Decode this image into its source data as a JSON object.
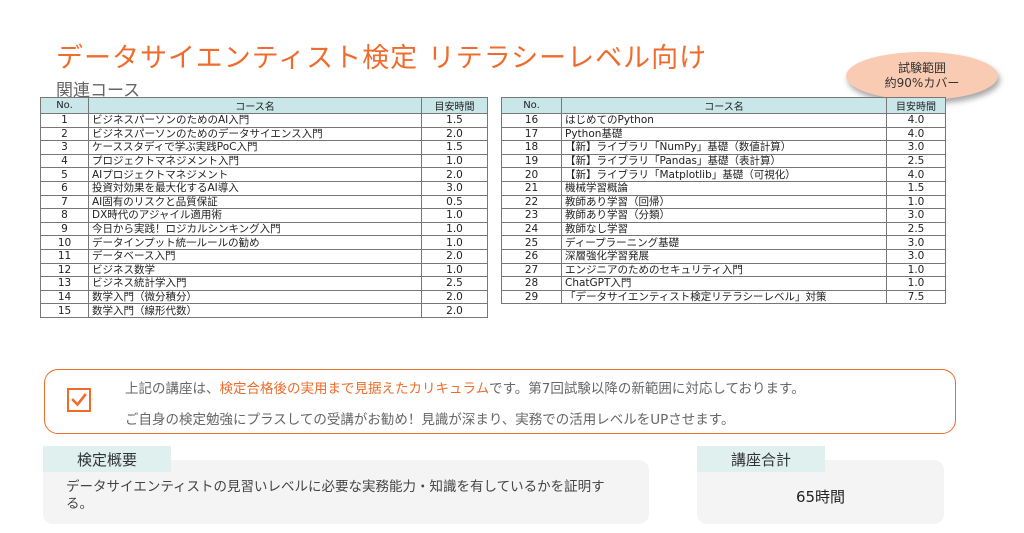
{
  "title": "データサイエンティスト検定 リテラシーレベル向け",
  "subtitle": "関連コース",
  "badge": {
    "line1": "試験範囲",
    "line2": "約90%カバー"
  },
  "table": {
    "headers": {
      "no": "No.",
      "name": "コース名",
      "hours": "目安時間"
    },
    "left": [
      {
        "no": "1",
        "name": "ビジネスパーソンのためのAI入門",
        "hours": "1.5"
      },
      {
        "no": "2",
        "name": "ビジネスパーソンのためのデータサイエンス入門",
        "hours": "2.0"
      },
      {
        "no": "3",
        "name": "ケーススタディで学ぶ実践PoC入門",
        "hours": "1.5"
      },
      {
        "no": "4",
        "name": "プロジェクトマネジメント入門",
        "hours": "1.0"
      },
      {
        "no": "5",
        "name": "AIプロジェクトマネジメント",
        "hours": "2.0"
      },
      {
        "no": "6",
        "name": "投資対効果を最大化するAI導入",
        "hours": "3.0"
      },
      {
        "no": "7",
        "name": "AI固有のリスクと品質保証",
        "hours": "0.5"
      },
      {
        "no": "8",
        "name": "DX時代のアジャイル適用術",
        "hours": "1.0"
      },
      {
        "no": "9",
        "name": "今日から実践！ロジカルシンキング入門",
        "hours": "1.0"
      },
      {
        "no": "10",
        "name": "データインプット統一ルールの勧め",
        "hours": "1.0"
      },
      {
        "no": "11",
        "name": "データベース入門",
        "hours": "2.0"
      },
      {
        "no": "12",
        "name": "ビジネス数学",
        "hours": "1.0"
      },
      {
        "no": "13",
        "name": "ビジネス統計学入門",
        "hours": "2.5"
      },
      {
        "no": "14",
        "name": "数学入門（微分積分）",
        "hours": "2.0"
      },
      {
        "no": "15",
        "name": "数学入門（線形代数）",
        "hours": "2.0"
      }
    ],
    "right": [
      {
        "no": "16",
        "name": "はじめてのPython",
        "hours": "4.0"
      },
      {
        "no": "17",
        "name": "Python基礎",
        "hours": "4.0"
      },
      {
        "no": "18",
        "name": "【新】ライブラリ「NumPy」基礎（数値計算）",
        "hours": "3.0"
      },
      {
        "no": "19",
        "name": "【新】ライブラリ「Pandas」基礎（表計算）",
        "hours": "2.5"
      },
      {
        "no": "20",
        "name": "【新】ライブラリ「Matplotlib」基礎（可視化）",
        "hours": "4.0"
      },
      {
        "no": "21",
        "name": "機械学習概論",
        "hours": "1.5"
      },
      {
        "no": "22",
        "name": "教師あり学習（回帰）",
        "hours": "1.0"
      },
      {
        "no": "23",
        "name": "教師あり学習（分類）",
        "hours": "3.0"
      },
      {
        "no": "24",
        "name": "教師なし学習",
        "hours": "2.5"
      },
      {
        "no": "25",
        "name": "ディープラーニング基礎",
        "hours": "3.0"
      },
      {
        "no": "26",
        "name": "深層強化学習発展",
        "hours": "3.0"
      },
      {
        "no": "27",
        "name": "エンジニアのためのセキュリティ入門",
        "hours": "1.0"
      },
      {
        "no": "28",
        "name": "ChatGPT入門",
        "hours": "1.0"
      },
      {
        "no": "29",
        "name": "「データサイエンティスト検定リテラシーレベル」対策",
        "hours": "7.5"
      }
    ]
  },
  "notice": {
    "line1_before": "上記の講座は、",
    "line1_highlight": "検定合格後の実用まで見据えたカリキュラム",
    "line1_after": "です。第7回試験以降の新範囲に対応しております。",
    "line2": "ご自身の検定勉強にプラスしての受講がお勧め！見識が深まり、実務での活用レベルをUPさせます。",
    "accent_color": "#ef6c2c"
  },
  "summary": {
    "label": "検定概要",
    "text": "データサイエンティストの見習いレベルに必要な実務能力・知識を有しているかを証明する。"
  },
  "total": {
    "label": "講座合計",
    "value": "65時間"
  },
  "colors": {
    "accent": "#ef6c2c",
    "header_fill": "#c9e6e9",
    "label_fill": "#dff0ee"
  }
}
